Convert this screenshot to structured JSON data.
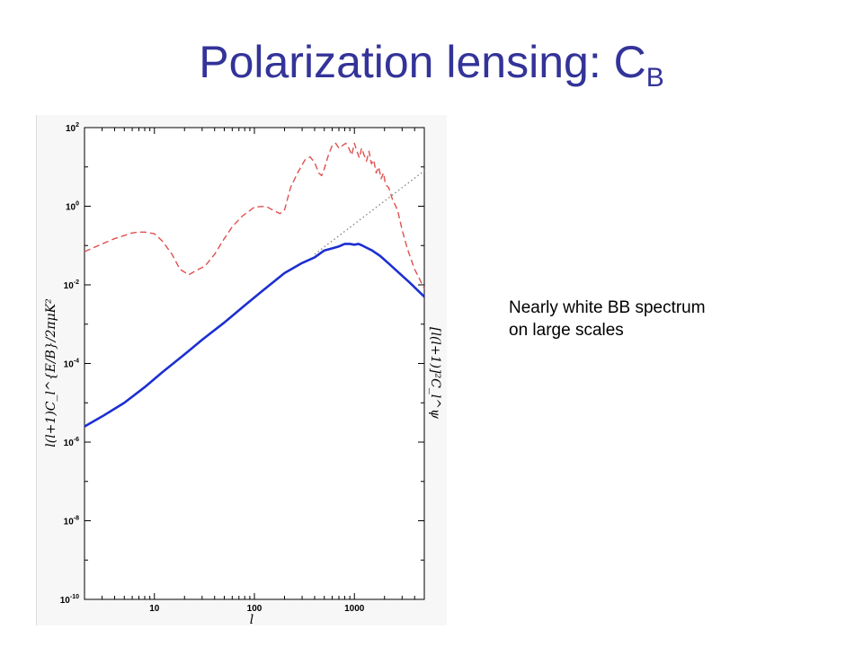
{
  "slide": {
    "title_main": "Polarization lensing: C",
    "title_sub": "B"
  },
  "note": {
    "line1": "Nearly white BB spectrum",
    "line2": "on large scales"
  },
  "chart_data": {
    "type": "line",
    "xscale": "log",
    "yscale": "log",
    "xlim": [
      2,
      5000
    ],
    "ylim": [
      1e-10,
      100
    ],
    "xlabel": "l",
    "ylabel": "l(l+1)C_l^{E/B}/2πμK²",
    "ylabel_right": "[l(l+1)]²C_l^ψ",
    "x_ticks": [
      {
        "value": 10,
        "label": "10"
      },
      {
        "value": 100,
        "label": "100"
      },
      {
        "value": 1000,
        "label": "1000"
      }
    ],
    "y_ticks": [
      {
        "value": 1e-10,
        "base": "10",
        "exp": "-10"
      },
      {
        "value": 1e-08,
        "base": "10",
        "exp": "-8"
      },
      {
        "value": 1e-06,
        "base": "10",
        "exp": "-6"
      },
      {
        "value": 0.0001,
        "base": "10",
        "exp": "-4"
      },
      {
        "value": 0.01,
        "base": "10",
        "exp": "-2"
      },
      {
        "value": 1,
        "base": "10",
        "exp": "0"
      },
      {
        "value": 100,
        "base": "10",
        "exp": "2"
      }
    ],
    "grid": false,
    "series": [
      {
        "style": "dashed",
        "color": "#e05050",
        "x": [
          2,
          3,
          4,
          5,
          6,
          7,
          8,
          10,
          12,
          15,
          18,
          22,
          26,
          32,
          40,
          50,
          60,
          75,
          100,
          130,
          160,
          180,
          200,
          230,
          270,
          320,
          360,
          400,
          440,
          470,
          500,
          550,
          600,
          650,
          700,
          760,
          820,
          880,
          940,
          1000,
          1060,
          1120,
          1180,
          1250,
          1320,
          1400,
          1480,
          1560,
          1650,
          1750,
          1850,
          1950,
          2050,
          2200,
          2400,
          2700,
          3000,
          3400,
          4000,
          5000
        ],
        "y": [
          0.07,
          0.11,
          0.15,
          0.18,
          0.21,
          0.22,
          0.22,
          0.2,
          0.13,
          0.06,
          0.025,
          0.018,
          0.023,
          0.03,
          0.06,
          0.15,
          0.3,
          0.55,
          0.95,
          1.0,
          0.75,
          0.65,
          0.8,
          3.0,
          7.0,
          15.0,
          18.0,
          13.0,
          7.0,
          6.0,
          9.0,
          20.0,
          35.0,
          40.0,
          30.0,
          35.0,
          40.0,
          30.0,
          20.0,
          40.0,
          25.0,
          17.0,
          30.0,
          20.0,
          14.0,
          25.0,
          12.0,
          15.0,
          7.0,
          10.0,
          5.0,
          7.0,
          3.5,
          3.0,
          1.5,
          0.8,
          0.25,
          0.08,
          0.025,
          0.008
        ]
      },
      {
        "style": "solid",
        "color": "#1c2fd1",
        "x": [
          2,
          3,
          5,
          8,
          12,
          20,
          30,
          50,
          80,
          120,
          200,
          300,
          400,
          500,
          600,
          700,
          800,
          900,
          1000,
          1100,
          1200,
          1300,
          1500,
          1800,
          2200,
          2800,
          3500,
          5000
        ],
        "y": [
          2.5e-06,
          4.5e-06,
          1e-05,
          2.5e-05,
          6e-05,
          0.00017,
          0.0004,
          0.0011,
          0.003,
          0.007,
          0.02,
          0.036,
          0.05,
          0.075,
          0.085,
          0.095,
          0.11,
          0.11,
          0.105,
          0.11,
          0.1,
          0.09,
          0.075,
          0.055,
          0.035,
          0.02,
          0.012,
          0.005
        ]
      },
      {
        "style": "dotted",
        "color": "#777777",
        "x": [
          400,
          5000
        ],
        "y": [
          0.06,
          8.0
        ]
      }
    ]
  }
}
